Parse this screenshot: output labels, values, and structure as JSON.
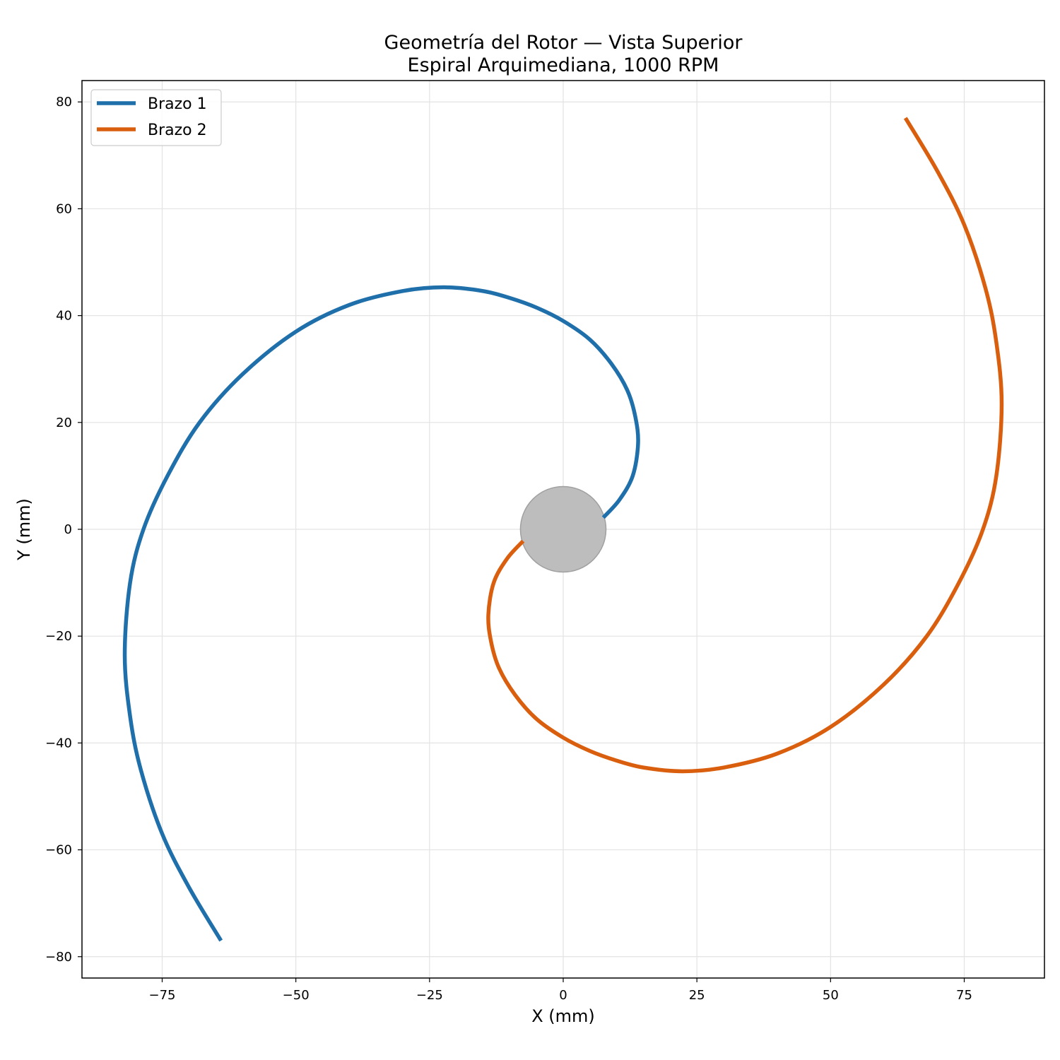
{
  "chart_data": {
    "type": "line",
    "title": "Geometría del Rotor — Vista Superior",
    "subtitle": "Espiral Arquimediana, 1000 RPM",
    "xlabel": "X (mm)",
    "ylabel": "Y (mm)",
    "xlim": [
      -90,
      90
    ],
    "ylim": [
      -84,
      84
    ],
    "xticks": [
      -75,
      -50,
      -25,
      0,
      25,
      50,
      75
    ],
    "yticks": [
      -80,
      -60,
      -40,
      -20,
      0,
      20,
      40,
      60,
      80
    ],
    "xtick_labels": [
      "−75",
      "−50",
      "−25",
      "0",
      "25",
      "50",
      "75"
    ],
    "ytick_labels": [
      "−80",
      "−60",
      "−40",
      "−20",
      "0",
      "20",
      "40",
      "60",
      "80"
    ],
    "grid": true,
    "legend_position": "top-left",
    "hub": {
      "center": [
        0,
        0
      ],
      "radius": 8,
      "color": "#bdbdbd"
    },
    "series": [
      {
        "name": "Brazo 1",
        "color": "#1f6fab",
        "points": [
          [
            7.5,
            2.2
          ],
          [
            10.5,
            5.5
          ],
          [
            13,
            10
          ],
          [
            14,
            16
          ],
          [
            13.5,
            21
          ],
          [
            12,
            26
          ],
          [
            9,
            31
          ],
          [
            5,
            35.5
          ],
          [
            0,
            39
          ],
          [
            -5,
            41.5
          ],
          [
            -10,
            43.3
          ],
          [
            -15,
            44.6
          ],
          [
            -22.3,
            45.3
          ],
          [
            -30,
            44.6
          ],
          [
            -40,
            42
          ],
          [
            -50,
            37
          ],
          [
            -60,
            29
          ],
          [
            -68,
            20
          ],
          [
            -74,
            10
          ],
          [
            -78.5,
            0
          ],
          [
            -81,
            -10
          ],
          [
            -82,
            -23.5
          ],
          [
            -81,
            -35
          ],
          [
            -79,
            -45
          ],
          [
            -75,
            -57
          ],
          [
            -70,
            -67
          ],
          [
            -64,
            -77
          ]
        ]
      },
      {
        "name": "Brazo 2",
        "color": "#d95f0e",
        "points": [
          [
            -7.5,
            -2.2
          ],
          [
            -10.5,
            -5.5
          ],
          [
            -13,
            -10
          ],
          [
            -14,
            -16
          ],
          [
            -13.5,
            -21
          ],
          [
            -12,
            -26
          ],
          [
            -9,
            -31
          ],
          [
            -5,
            -35.5
          ],
          [
            0,
            -39
          ],
          [
            5,
            -41.5
          ],
          [
            10,
            -43.3
          ],
          [
            15,
            -44.6
          ],
          [
            22.3,
            -45.3
          ],
          [
            30,
            -44.6
          ],
          [
            40,
            -42
          ],
          [
            50,
            -37
          ],
          [
            60,
            -29
          ],
          [
            68,
            -20
          ],
          [
            74,
            -10
          ],
          [
            78.5,
            0
          ],
          [
            81,
            10
          ],
          [
            82,
            23.5
          ],
          [
            81,
            35
          ],
          [
            79,
            45
          ],
          [
            75,
            57
          ],
          [
            70,
            67
          ],
          [
            64,
            77
          ]
        ]
      }
    ]
  }
}
